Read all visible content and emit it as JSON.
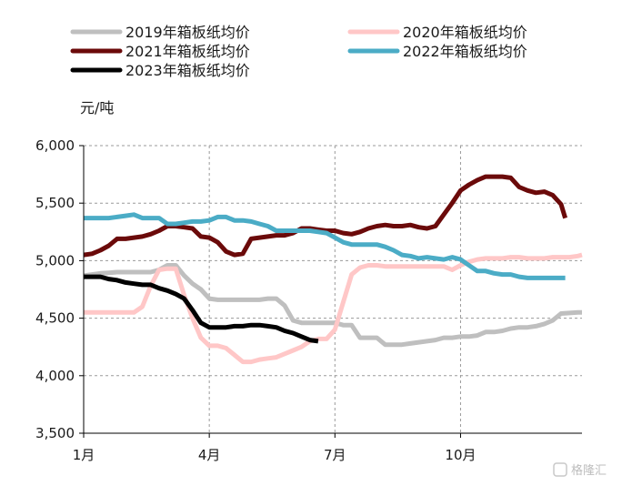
{
  "chart_data": {
    "type": "line",
    "title": "",
    "xlabel": "",
    "ylabel": "元/吨",
    "ylim": [
      3500,
      6000
    ],
    "yticks": [
      3500,
      4000,
      4500,
      5000,
      5500,
      6000
    ],
    "ytick_labels": [
      "3,500",
      "4,000",
      "4,500",
      "5,000",
      "5,500",
      "6,000"
    ],
    "xlim": [
      1,
      12.9
    ],
    "xticks": [
      1,
      4,
      7,
      10
    ],
    "xtick_labels": [
      "1月",
      "4月",
      "7月",
      "10月"
    ],
    "grid": true,
    "legend": "top",
    "series": [
      {
        "name": "2019年箱板纸均价",
        "color": "#bfbfbf",
        "x": [
          1.0,
          1.2,
          1.4,
          1.6,
          1.8,
          2.0,
          2.2,
          2.4,
          2.6,
          2.8,
          3.0,
          3.2,
          3.4,
          3.6,
          3.8,
          4.0,
          4.2,
          4.4,
          4.6,
          4.8,
          5.0,
          5.2,
          5.4,
          5.6,
          5.8,
          6.0,
          6.2,
          6.4,
          6.6,
          6.8,
          7.0,
          7.2,
          7.4,
          7.6,
          7.8,
          8.0,
          8.2,
          8.4,
          8.6,
          8.8,
          9.0,
          9.2,
          9.4,
          9.6,
          9.8,
          10.0,
          10.2,
          10.4,
          10.6,
          10.8,
          11.0,
          11.2,
          11.4,
          11.6,
          11.8,
          12.0,
          12.2,
          12.4,
          12.6,
          12.8,
          12.9
        ],
        "y": [
          4870,
          4880,
          4890,
          4895,
          4900,
          4900,
          4900,
          4900,
          4900,
          4920,
          4960,
          4960,
          4870,
          4800,
          4750,
          4670,
          4660,
          4660,
          4660,
          4660,
          4660,
          4660,
          4670,
          4670,
          4610,
          4480,
          4460,
          4460,
          4460,
          4460,
          4460,
          4440,
          4440,
          4330,
          4330,
          4330,
          4270,
          4270,
          4270,
          4280,
          4290,
          4300,
          4310,
          4330,
          4330,
          4340,
          4340,
          4350,
          4380,
          4380,
          4390,
          4410,
          4420,
          4420,
          4430,
          4450,
          4480,
          4540,
          4545,
          4550,
          4550
        ]
      },
      {
        "name": "2020年箱板纸均价",
        "color": "#ffc7c7",
        "x": [
          1.0,
          1.2,
          1.4,
          1.6,
          1.8,
          2.0,
          2.2,
          2.4,
          2.6,
          2.8,
          3.0,
          3.2,
          3.4,
          3.6,
          3.8,
          4.0,
          4.2,
          4.4,
          4.6,
          4.8,
          5.0,
          5.2,
          5.4,
          5.6,
          5.8,
          6.0,
          6.2,
          6.4,
          6.6,
          6.8,
          7.0,
          7.2,
          7.4,
          7.6,
          7.8,
          8.0,
          8.2,
          8.4,
          8.6,
          8.8,
          9.0,
          9.2,
          9.4,
          9.6,
          9.8,
          10.0,
          10.2,
          10.4,
          10.6,
          10.8,
          11.0,
          11.2,
          11.4,
          11.6,
          11.8,
          12.0,
          12.2,
          12.4,
          12.6,
          12.8,
          12.9
        ],
        "y": [
          4550,
          4550,
          4550,
          4550,
          4550,
          4550,
          4550,
          4600,
          4780,
          4920,
          4930,
          4930,
          4700,
          4500,
          4330,
          4260,
          4260,
          4240,
          4180,
          4120,
          4120,
          4140,
          4150,
          4160,
          4190,
          4220,
          4250,
          4300,
          4320,
          4320,
          4400,
          4640,
          4880,
          4940,
          4960,
          4960,
          4950,
          4950,
          4950,
          4950,
          4950,
          4950,
          4950,
          4950,
          4920,
          4960,
          4990,
          5010,
          5020,
          5020,
          5020,
          5030,
          5030,
          5020,
          5020,
          5020,
          5030,
          5030,
          5030,
          5040,
          5050
        ]
      },
      {
        "name": "2021年箱板纸均价",
        "color": "#6b0a0a",
        "x": [
          1.0,
          1.2,
          1.4,
          1.6,
          1.8,
          2.0,
          2.2,
          2.4,
          2.6,
          2.8,
          3.0,
          3.2,
          3.4,
          3.6,
          3.8,
          4.0,
          4.2,
          4.4,
          4.6,
          4.8,
          5.0,
          5.2,
          5.4,
          5.6,
          5.8,
          6.0,
          6.2,
          6.4,
          6.6,
          6.8,
          7.0,
          7.2,
          7.4,
          7.6,
          7.8,
          8.0,
          8.2,
          8.4,
          8.6,
          8.8,
          9.0,
          9.2,
          9.4,
          9.6,
          9.8,
          10.0,
          10.2,
          10.4,
          10.6,
          10.8,
          11.0,
          11.2,
          11.4,
          11.6,
          11.8,
          12.0,
          12.2,
          12.4,
          12.5
        ],
        "y": [
          5050,
          5060,
          5090,
          5130,
          5190,
          5190,
          5200,
          5210,
          5230,
          5260,
          5300,
          5300,
          5290,
          5280,
          5210,
          5200,
          5160,
          5080,
          5050,
          5060,
          5190,
          5200,
          5210,
          5220,
          5220,
          5240,
          5280,
          5280,
          5270,
          5260,
          5260,
          5240,
          5230,
          5250,
          5280,
          5300,
          5310,
          5300,
          5300,
          5310,
          5290,
          5280,
          5300,
          5400,
          5500,
          5610,
          5660,
          5700,
          5730,
          5730,
          5730,
          5720,
          5640,
          5610,
          5590,
          5600,
          5570,
          5490,
          5370
        ]
      },
      {
        "name": "2022年箱板纸均价",
        "color": "#4bacc6",
        "x": [
          1.0,
          1.2,
          1.4,
          1.6,
          1.8,
          2.0,
          2.2,
          2.4,
          2.6,
          2.8,
          3.0,
          3.2,
          3.4,
          3.6,
          3.8,
          4.0,
          4.2,
          4.4,
          4.6,
          4.8,
          5.0,
          5.2,
          5.4,
          5.6,
          5.8,
          6.0,
          6.2,
          6.4,
          6.6,
          6.8,
          7.0,
          7.2,
          7.4,
          7.6,
          7.8,
          8.0,
          8.2,
          8.4,
          8.6,
          8.8,
          9.0,
          9.2,
          9.4,
          9.6,
          9.8,
          10.0,
          10.2,
          10.4,
          10.6,
          10.8,
          11.0,
          11.2,
          11.4,
          11.6,
          11.8,
          12.0,
          12.2,
          12.4,
          12.5
        ],
        "y": [
          5370,
          5370,
          5370,
          5370,
          5380,
          5390,
          5400,
          5370,
          5370,
          5370,
          5320,
          5320,
          5330,
          5340,
          5340,
          5350,
          5380,
          5380,
          5350,
          5350,
          5340,
          5320,
          5300,
          5260,
          5260,
          5260,
          5260,
          5260,
          5250,
          5240,
          5200,
          5160,
          5140,
          5140,
          5140,
          5140,
          5120,
          5090,
          5050,
          5040,
          5020,
          5030,
          5020,
          5010,
          5030,
          5010,
          4960,
          4910,
          4910,
          4890,
          4880,
          4880,
          4860,
          4850,
          4850,
          4850,
          4850,
          4850,
          4850
        ]
      },
      {
        "name": "2023年箱板纸均价",
        "color": "#000000",
        "x": [
          1.0,
          1.2,
          1.4,
          1.6,
          1.8,
          2.0,
          2.2,
          2.4,
          2.6,
          2.8,
          3.0,
          3.2,
          3.4,
          3.6,
          3.8,
          4.0,
          4.2,
          4.4,
          4.6,
          4.8,
          5.0,
          5.2,
          5.4,
          5.6,
          5.8,
          6.0,
          6.2,
          6.4,
          6.6
        ],
        "y": [
          4860,
          4860,
          4860,
          4840,
          4830,
          4810,
          4800,
          4790,
          4790,
          4760,
          4740,
          4710,
          4670,
          4570,
          4460,
          4420,
          4420,
          4420,
          4430,
          4430,
          4440,
          4440,
          4430,
          4420,
          4390,
          4370,
          4340,
          4310,
          4300
        ]
      }
    ]
  },
  "watermark": "格隆汇"
}
